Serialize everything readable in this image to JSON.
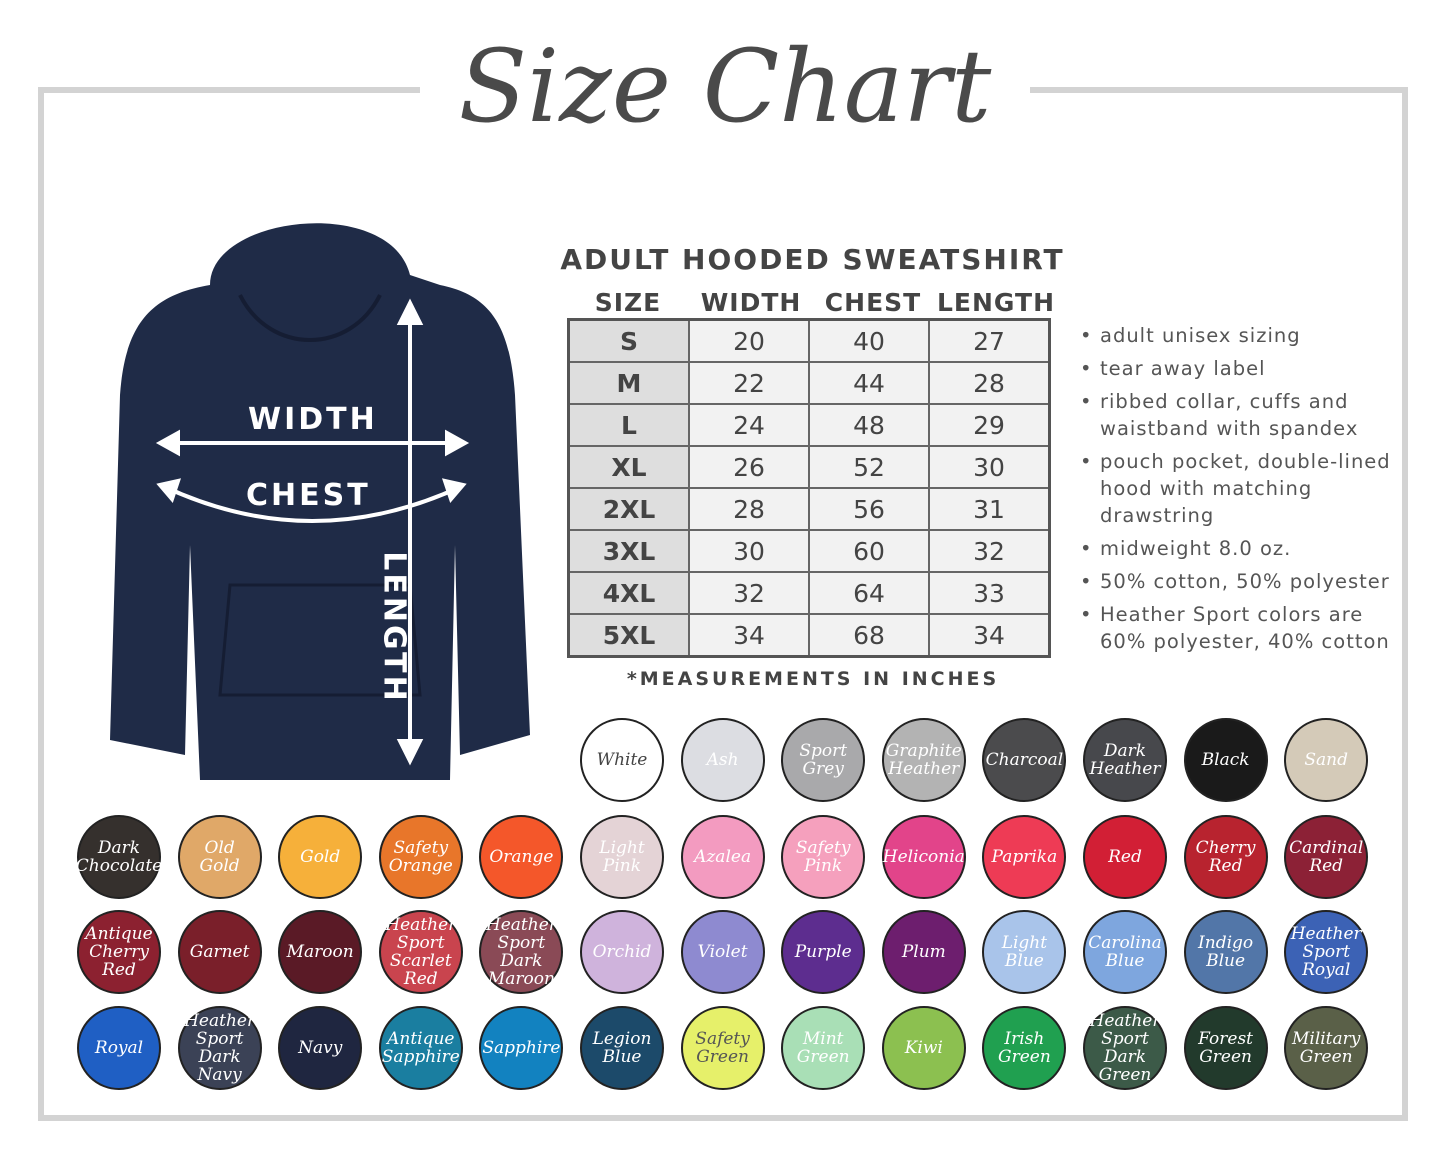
{
  "title": "Size Chart",
  "product_title": "ADULT HOODED SWEATSHIRT",
  "diagram_labels": {
    "width": "WIDTH",
    "chest": "CHEST",
    "length": "LENGTH"
  },
  "columns": [
    "SIZE",
    "WIDTH",
    "CHEST",
    "LENGTH"
  ],
  "rows": [
    [
      "S",
      "20",
      "40",
      "27"
    ],
    [
      "M",
      "22",
      "44",
      "28"
    ],
    [
      "L",
      "24",
      "48",
      "29"
    ],
    [
      "XL",
      "26",
      "52",
      "30"
    ],
    [
      "2XL",
      "28",
      "56",
      "31"
    ],
    [
      "3XL",
      "30",
      "60",
      "32"
    ],
    [
      "4XL",
      "32",
      "64",
      "33"
    ],
    [
      "5XL",
      "34",
      "68",
      "34"
    ]
  ],
  "footnote": "*MEASUREMENTS IN INCHES",
  "features": [
    "adult unisex sizing",
    "tear away label",
    "ribbed collar, cuffs and waistband with spandex",
    "pouch pocket, double-lined hood with matching drawstring",
    "midweight 8.0 oz.",
    "50% cotton, 50% polyester",
    "Heather Sport colors are 60% polyester, 40% cotton"
  ],
  "hoodie_color": "#1f2b47",
  "colors": [
    [
      {
        "name": "White",
        "hex": "#ffffff",
        "text": "#444444"
      },
      {
        "name": "Ash",
        "hex": "#dcdde2"
      },
      {
        "name": "Sport Grey",
        "hex": "#a9a9ab"
      },
      {
        "name": "Graphite Heather",
        "hex": "#b3b3b3"
      },
      {
        "name": "Charcoal",
        "hex": "#4b4b4d"
      },
      {
        "name": "Dark Heather",
        "hex": "#47484c"
      },
      {
        "name": "Black",
        "hex": "#1a1a1a"
      },
      {
        "name": "Sand",
        "hex": "#d4cab8"
      }
    ],
    [
      {
        "name": "Dark Chocolate",
        "hex": "#35302d"
      },
      {
        "name": "Old Gold",
        "hex": "#e0a868"
      },
      {
        "name": "Gold",
        "hex": "#f6b03a"
      },
      {
        "name": "Safety Orange",
        "hex": "#e8762a"
      },
      {
        "name": "Orange",
        "hex": "#f4572a"
      },
      {
        "name": "Light Pink",
        "hex": "#e4d3d6"
      },
      {
        "name": "Azalea",
        "hex": "#f39bc0"
      },
      {
        "name": "Safety Pink",
        "hex": "#f5a0bd"
      },
      {
        "name": "Heliconia",
        "hex": "#e2448a"
      },
      {
        "name": "Paprika",
        "hex": "#ee3b55"
      },
      {
        "name": "Red",
        "hex": "#d21f35"
      },
      {
        "name": "Cherry Red",
        "hex": "#b8232f"
      },
      {
        "name": "Cardinal Red",
        "hex": "#8c2136"
      }
    ],
    [
      {
        "name": "Antique Cherry Red",
        "hex": "#8c2130"
      },
      {
        "name": "Garnet",
        "hex": "#7a1f2a"
      },
      {
        "name": "Maroon",
        "hex": "#5a1a26"
      },
      {
        "name": "Heather Sport Scarlet Red",
        "hex": "#c9444e"
      },
      {
        "name": "Heather Sport Dark Maroon",
        "hex": "#8a4a56"
      },
      {
        "name": "Orchid",
        "hex": "#cfb3dc"
      },
      {
        "name": "Violet",
        "hex": "#8e8ad0"
      },
      {
        "name": "Purple",
        "hex": "#5d2d8f"
      },
      {
        "name": "Plum",
        "hex": "#6d1e6e"
      },
      {
        "name": "Light Blue",
        "hex": "#a9c4ea"
      },
      {
        "name": "Carolina Blue",
        "hex": "#7ea6de"
      },
      {
        "name": "Indigo Blue",
        "hex": "#5276a8"
      },
      {
        "name": "Heather Sport Royal",
        "hex": "#3c62b5"
      }
    ],
    [
      {
        "name": "Royal",
        "hex": "#1f5fc4"
      },
      {
        "name": "Heather Sport Dark Navy",
        "hex": "#3b4256"
      },
      {
        "name": "Navy",
        "hex": "#1f2640"
      },
      {
        "name": "Antique Sapphire",
        "hex": "#1a7ea0"
      },
      {
        "name": "Sapphire",
        "hex": "#1282c0"
      },
      {
        "name": "Legion Blue",
        "hex": "#1c4a6a"
      },
      {
        "name": "Safety Green",
        "hex": "#e6f06a",
        "text": "#555555"
      },
      {
        "name": "Mint Green",
        "hex": "#a9dfb6"
      },
      {
        "name": "Kiwi",
        "hex": "#8cc050"
      },
      {
        "name": "Irish Green",
        "hex": "#20a050"
      },
      {
        "name": "Heather Sport Dark Green",
        "hex": "#3c5a48"
      },
      {
        "name": "Forest Green",
        "hex": "#223a2c"
      },
      {
        "name": "Military Green",
        "hex": "#5a6048"
      }
    ]
  ]
}
